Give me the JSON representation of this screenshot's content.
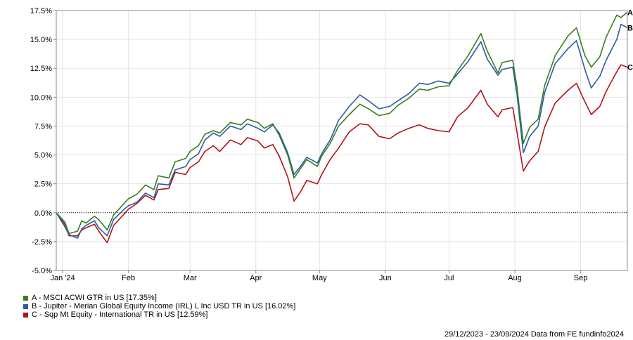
{
  "chart_data": {
    "type": "line",
    "yticks": [
      "17.5%",
      "15.0%",
      "12.5%",
      "10.0%",
      "7.5%",
      "5.0%",
      "2.5%",
      "0.0%",
      "-2.5%",
      "-5.0%"
    ],
    "ylim": [
      -5.0,
      17.5
    ],
    "xlim": [
      "2023-12-29",
      "2024-09-23"
    ],
    "xticks": [
      {
        "label": "Jan '24",
        "date": "2024-01-01"
      },
      {
        "label": "Feb",
        "date": "2024-02-01"
      },
      {
        "label": "Mar",
        "date": "2024-03-01"
      },
      {
        "label": "Apr",
        "date": "2024-04-01"
      },
      {
        "label": "May",
        "date": "2024-05-01"
      },
      {
        "label": "Jun",
        "date": "2024-06-01"
      },
      {
        "label": "Jul",
        "date": "2024-07-01"
      },
      {
        "label": "Aug",
        "date": "2024-08-01"
      },
      {
        "label": "Sep",
        "date": "2024-09-01"
      }
    ],
    "grid": true,
    "series": [
      {
        "name": "A - MSCI ACWI GTR in US [17.35%]",
        "end_label": "A",
        "color": "#3a7d1e",
        "points": [
          [
            "2023-12-29",
            0.0
          ],
          [
            "2024-01-02",
            -0.8
          ],
          [
            "2024-01-04",
            -1.8
          ],
          [
            "2024-01-08",
            -1.6
          ],
          [
            "2024-01-10",
            -0.7
          ],
          [
            "2024-01-12",
            -0.9
          ],
          [
            "2024-01-16",
            -0.3
          ],
          [
            "2024-01-18",
            -0.6
          ],
          [
            "2024-01-22",
            -1.5
          ],
          [
            "2024-01-25",
            -0.2
          ],
          [
            "2024-01-30",
            0.8
          ],
          [
            "2024-02-01",
            1.2
          ],
          [
            "2024-02-05",
            1.6
          ],
          [
            "2024-02-09",
            2.4
          ],
          [
            "2024-02-13",
            2.0
          ],
          [
            "2024-02-15",
            3.2
          ],
          [
            "2024-02-20",
            3.0
          ],
          [
            "2024-02-23",
            4.4
          ],
          [
            "2024-02-28",
            4.7
          ],
          [
            "2024-03-01",
            5.3
          ],
          [
            "2024-03-05",
            5.8
          ],
          [
            "2024-03-08",
            6.8
          ],
          [
            "2024-03-12",
            7.1
          ],
          [
            "2024-03-15",
            6.9
          ],
          [
            "2024-03-20",
            7.8
          ],
          [
            "2024-03-25",
            7.6
          ],
          [
            "2024-03-28",
            8.1
          ],
          [
            "2024-04-02",
            7.8
          ],
          [
            "2024-04-05",
            7.3
          ],
          [
            "2024-04-09",
            7.7
          ],
          [
            "2024-04-12",
            6.7
          ],
          [
            "2024-04-16",
            5.0
          ],
          [
            "2024-04-19",
            3.0
          ],
          [
            "2024-04-22",
            3.8
          ],
          [
            "2024-04-25",
            4.6
          ],
          [
            "2024-04-30",
            4.0
          ],
          [
            "2024-05-02",
            4.9
          ],
          [
            "2024-05-06",
            6.0
          ],
          [
            "2024-05-10",
            7.5
          ],
          [
            "2024-05-15",
            8.5
          ],
          [
            "2024-05-20",
            9.4
          ],
          [
            "2024-05-24",
            9.0
          ],
          [
            "2024-05-29",
            8.4
          ],
          [
            "2024-06-03",
            8.6
          ],
          [
            "2024-06-07",
            9.3
          ],
          [
            "2024-06-12",
            9.9
          ],
          [
            "2024-06-17",
            10.7
          ],
          [
            "2024-06-21",
            10.6
          ],
          [
            "2024-06-26",
            10.9
          ],
          [
            "2024-07-01",
            11.0
          ],
          [
            "2024-07-05",
            12.3
          ],
          [
            "2024-07-10",
            13.6
          ],
          [
            "2024-07-16",
            15.5
          ],
          [
            "2024-07-19",
            14.0
          ],
          [
            "2024-07-24",
            12.1
          ],
          [
            "2024-07-26",
            13.0
          ],
          [
            "2024-07-31",
            13.2
          ],
          [
            "2024-08-02",
            10.9
          ],
          [
            "2024-08-05",
            6.0
          ],
          [
            "2024-08-08",
            7.4
          ],
          [
            "2024-08-12",
            8.1
          ],
          [
            "2024-08-15",
            11.0
          ],
          [
            "2024-08-20",
            13.6
          ],
          [
            "2024-08-26",
            15.3
          ],
          [
            "2024-08-30",
            16.0
          ],
          [
            "2024-09-03",
            13.6
          ],
          [
            "2024-09-06",
            12.6
          ],
          [
            "2024-09-10",
            13.5
          ],
          [
            "2024-09-13",
            15.2
          ],
          [
            "2024-09-18",
            17.1
          ],
          [
            "2024-09-20",
            16.9
          ],
          [
            "2024-09-23",
            17.35
          ]
        ]
      },
      {
        "name": "B - Jupiter - Merian Global Equity Income (IRL) L Inc USD TR in US [16.02%]",
        "end_label": "B",
        "color": "#2b5aa6",
        "points": [
          [
            "2023-12-29",
            0.0
          ],
          [
            "2024-01-02",
            -1.2
          ],
          [
            "2024-01-04",
            -1.9
          ],
          [
            "2024-01-08",
            -2.2
          ],
          [
            "2024-01-10",
            -1.4
          ],
          [
            "2024-01-12",
            -1.1
          ],
          [
            "2024-01-16",
            -0.7
          ],
          [
            "2024-01-18",
            -1.3
          ],
          [
            "2024-01-22",
            -2.0
          ],
          [
            "2024-01-25",
            -0.6
          ],
          [
            "2024-01-30",
            0.3
          ],
          [
            "2024-02-01",
            0.6
          ],
          [
            "2024-02-05",
            0.9
          ],
          [
            "2024-02-09",
            1.7
          ],
          [
            "2024-02-13",
            1.3
          ],
          [
            "2024-02-15",
            2.5
          ],
          [
            "2024-02-20",
            2.4
          ],
          [
            "2024-02-23",
            3.7
          ],
          [
            "2024-02-28",
            4.0
          ],
          [
            "2024-03-01",
            4.6
          ],
          [
            "2024-03-05",
            5.1
          ],
          [
            "2024-03-08",
            6.3
          ],
          [
            "2024-03-12",
            6.9
          ],
          [
            "2024-03-15",
            6.6
          ],
          [
            "2024-03-20",
            7.5
          ],
          [
            "2024-03-25",
            7.2
          ],
          [
            "2024-03-28",
            7.7
          ],
          [
            "2024-04-02",
            7.3
          ],
          [
            "2024-04-05",
            7.0
          ],
          [
            "2024-04-09",
            7.6
          ],
          [
            "2024-04-12",
            6.9
          ],
          [
            "2024-04-16",
            5.2
          ],
          [
            "2024-04-19",
            3.3
          ],
          [
            "2024-04-22",
            4.0
          ],
          [
            "2024-04-25",
            4.8
          ],
          [
            "2024-04-30",
            4.3
          ],
          [
            "2024-05-02",
            5.1
          ],
          [
            "2024-05-06",
            6.3
          ],
          [
            "2024-05-10",
            8.0
          ],
          [
            "2024-05-15",
            9.2
          ],
          [
            "2024-05-20",
            10.2
          ],
          [
            "2024-05-24",
            9.7
          ],
          [
            "2024-05-29",
            9.0
          ],
          [
            "2024-06-03",
            9.2
          ],
          [
            "2024-06-07",
            9.7
          ],
          [
            "2024-06-12",
            10.3
          ],
          [
            "2024-06-17",
            11.2
          ],
          [
            "2024-06-21",
            11.1
          ],
          [
            "2024-06-26",
            11.4
          ],
          [
            "2024-07-01",
            11.2
          ],
          [
            "2024-07-05",
            12.0
          ],
          [
            "2024-07-10",
            13.1
          ],
          [
            "2024-07-16",
            14.8
          ],
          [
            "2024-07-19",
            13.3
          ],
          [
            "2024-07-24",
            11.9
          ],
          [
            "2024-07-26",
            12.4
          ],
          [
            "2024-07-31",
            12.6
          ],
          [
            "2024-08-02",
            10.3
          ],
          [
            "2024-08-05",
            5.2
          ],
          [
            "2024-08-08",
            6.6
          ],
          [
            "2024-08-12",
            7.5
          ],
          [
            "2024-08-15",
            10.4
          ],
          [
            "2024-08-20",
            12.9
          ],
          [
            "2024-08-26",
            14.2
          ],
          [
            "2024-08-30",
            14.9
          ],
          [
            "2024-09-03",
            12.4
          ],
          [
            "2024-09-06",
            10.8
          ],
          [
            "2024-09-10",
            11.8
          ],
          [
            "2024-09-13",
            13.2
          ],
          [
            "2024-09-18",
            15.0
          ],
          [
            "2024-09-20",
            16.3
          ],
          [
            "2024-09-23",
            16.02
          ]
        ]
      },
      {
        "name": "C - Sqp Mt Equity - International TR in US [12.59%]",
        "end_label": "C",
        "color": "#b51217",
        "points": [
          [
            "2023-12-29",
            0.0
          ],
          [
            "2024-01-02",
            -1.0
          ],
          [
            "2024-01-04",
            -2.0
          ],
          [
            "2024-01-08",
            -2.0
          ],
          [
            "2024-01-10",
            -1.5
          ],
          [
            "2024-01-12",
            -1.3
          ],
          [
            "2024-01-16",
            -1.0
          ],
          [
            "2024-01-18",
            -1.6
          ],
          [
            "2024-01-22",
            -2.6
          ],
          [
            "2024-01-25",
            -1.1
          ],
          [
            "2024-01-30",
            -0.1
          ],
          [
            "2024-02-01",
            0.3
          ],
          [
            "2024-02-05",
            0.8
          ],
          [
            "2024-02-09",
            1.5
          ],
          [
            "2024-02-13",
            1.1
          ],
          [
            "2024-02-15",
            2.0
          ],
          [
            "2024-02-20",
            2.1
          ],
          [
            "2024-02-23",
            3.5
          ],
          [
            "2024-02-28",
            3.3
          ],
          [
            "2024-03-01",
            3.9
          ],
          [
            "2024-03-05",
            4.4
          ],
          [
            "2024-03-08",
            5.3
          ],
          [
            "2024-03-12",
            5.8
          ],
          [
            "2024-03-15",
            5.3
          ],
          [
            "2024-03-20",
            6.3
          ],
          [
            "2024-03-25",
            5.9
          ],
          [
            "2024-03-28",
            6.5
          ],
          [
            "2024-04-02",
            6.2
          ],
          [
            "2024-04-05",
            5.6
          ],
          [
            "2024-04-09",
            5.9
          ],
          [
            "2024-04-12",
            4.9
          ],
          [
            "2024-04-16",
            3.1
          ],
          [
            "2024-04-19",
            1.0
          ],
          [
            "2024-04-22",
            1.8
          ],
          [
            "2024-04-25",
            2.8
          ],
          [
            "2024-04-30",
            2.5
          ],
          [
            "2024-05-02",
            3.3
          ],
          [
            "2024-05-06",
            4.6
          ],
          [
            "2024-05-10",
            5.6
          ],
          [
            "2024-05-15",
            7.0
          ],
          [
            "2024-05-20",
            7.7
          ],
          [
            "2024-05-24",
            7.6
          ],
          [
            "2024-05-29",
            6.6
          ],
          [
            "2024-06-03",
            6.4
          ],
          [
            "2024-06-07",
            6.9
          ],
          [
            "2024-06-12",
            7.3
          ],
          [
            "2024-06-17",
            7.6
          ],
          [
            "2024-06-21",
            7.3
          ],
          [
            "2024-06-26",
            7.1
          ],
          [
            "2024-07-01",
            7.0
          ],
          [
            "2024-07-05",
            8.3
          ],
          [
            "2024-07-10",
            9.1
          ],
          [
            "2024-07-16",
            10.6
          ],
          [
            "2024-07-19",
            9.4
          ],
          [
            "2024-07-24",
            8.3
          ],
          [
            "2024-07-26",
            8.9
          ],
          [
            "2024-07-31",
            9.1
          ],
          [
            "2024-08-02",
            7.0
          ],
          [
            "2024-08-05",
            3.6
          ],
          [
            "2024-08-08",
            4.5
          ],
          [
            "2024-08-12",
            5.3
          ],
          [
            "2024-08-15",
            7.4
          ],
          [
            "2024-08-20",
            9.5
          ],
          [
            "2024-08-26",
            10.6
          ],
          [
            "2024-08-30",
            11.2
          ],
          [
            "2024-09-03",
            9.6
          ],
          [
            "2024-09-06",
            8.5
          ],
          [
            "2024-09-10",
            9.2
          ],
          [
            "2024-09-13",
            10.5
          ],
          [
            "2024-09-18",
            12.2
          ],
          [
            "2024-09-20",
            12.8
          ],
          [
            "2024-09-23",
            12.59
          ]
        ]
      }
    ]
  },
  "footer": {
    "text": "29/12/2023 - 23/09/2024 Data from FE fundinfo2024"
  }
}
